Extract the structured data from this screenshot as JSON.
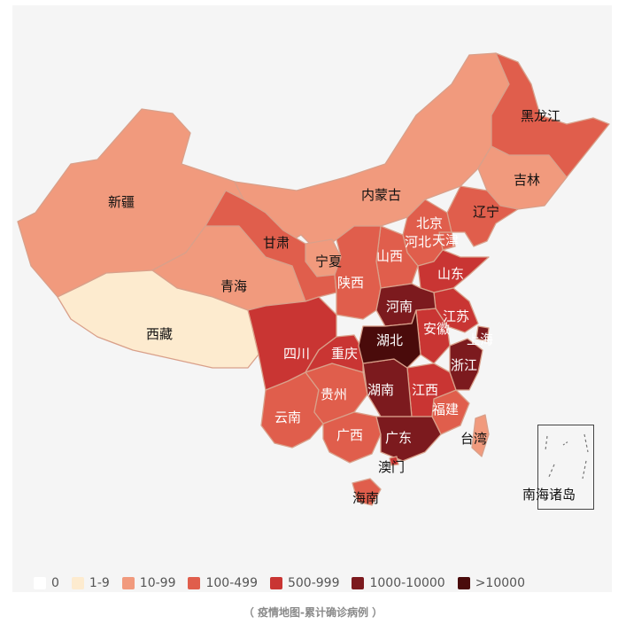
{
  "map": {
    "legend": [
      {
        "label": "0",
        "color": "#ffffff"
      },
      {
        "label": "1-9",
        "color": "#fdebcf"
      },
      {
        "label": "10-99",
        "color": "#f19a7d"
      },
      {
        "label": "100-499",
        "color": "#e05e4c"
      },
      {
        "label": "500-999",
        "color": "#c93533"
      },
      {
        "label": "1000-10000",
        "color": "#7c1a1e"
      },
      {
        "label": ">10000",
        "color": "#4a0b0b"
      }
    ],
    "regions": {
      "xinjiang": "新疆",
      "xizang": "西藏",
      "qinghai": "青海",
      "gansu": "甘肃",
      "neimenggu": "内蒙古",
      "heilongjiang": "黑龙江",
      "jilin": "吉林",
      "liaoning": "辽宁",
      "beijing": "北京",
      "tianjin": "天津",
      "hebei": "河北",
      "shanxi": "山西",
      "ningxia": "宁夏",
      "shaanxi": "陕西",
      "shandong": "山东",
      "henan": "河南",
      "jiangsu": "江苏",
      "anhui": "安徽",
      "shanghai": "上海",
      "hubei": "湖北",
      "sichuan": "四川",
      "chongqing": "重庆",
      "zhejiang": "浙江",
      "hunan": "湖南",
      "jiangxi": "江西",
      "guizhou": "贵州",
      "yunnan": "云南",
      "guangxi": "广西",
      "guangdong": "广东",
      "fujian": "福建",
      "taiwan": "台湾",
      "aomen": "澳门",
      "hainan": "海南",
      "nanhai": "南海诸岛"
    },
    "caption": "（ 疫情地图-累计确诊病例 ）"
  }
}
